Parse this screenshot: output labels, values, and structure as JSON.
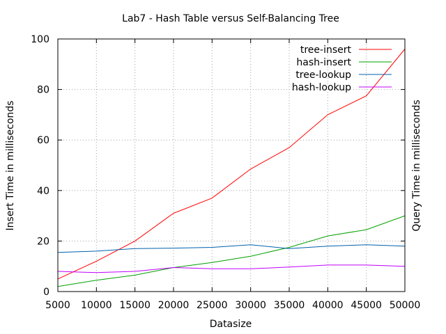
{
  "chart_data": {
    "type": "line",
    "title": "Lab7 - Hash Table versus Self-Balancing Tree",
    "xlabel": "Datasize",
    "ylabel": "Insert Time in milliseconds",
    "y2label": "Query Time in milliseconds",
    "xlim": [
      5000,
      50000
    ],
    "ylim": [
      0,
      100
    ],
    "xticks": [
      5000,
      10000,
      15000,
      20000,
      25000,
      30000,
      35000,
      40000,
      45000,
      50000
    ],
    "yticks": [
      0,
      20,
      40,
      60,
      80,
      100
    ],
    "grid": true,
    "legend_position": "top-right",
    "x": [
      5000,
      10000,
      15000,
      20000,
      25000,
      30000,
      35000,
      40000,
      45000,
      50000
    ],
    "series": [
      {
        "name": "tree-insert",
        "color": "#ff0000",
        "values": [
          5,
          12,
          20,
          31,
          37,
          48.5,
          57,
          70,
          77.5,
          96
        ]
      },
      {
        "name": "hash-insert",
        "color": "#00a000",
        "values": [
          2,
          4.5,
          6.5,
          9.5,
          11.5,
          14,
          17.5,
          22,
          24.5,
          30
        ]
      },
      {
        "name": "tree-lookup",
        "color": "#0060ad",
        "values": [
          15.5,
          16,
          17,
          17.2,
          17.5,
          18.5,
          17,
          18,
          18.5,
          18
        ]
      },
      {
        "name": "hash-lookup",
        "color": "#c000ff",
        "values": [
          8,
          7.5,
          8,
          9.5,
          9,
          9,
          9.7,
          10.5,
          10.5,
          10
        ]
      }
    ]
  }
}
